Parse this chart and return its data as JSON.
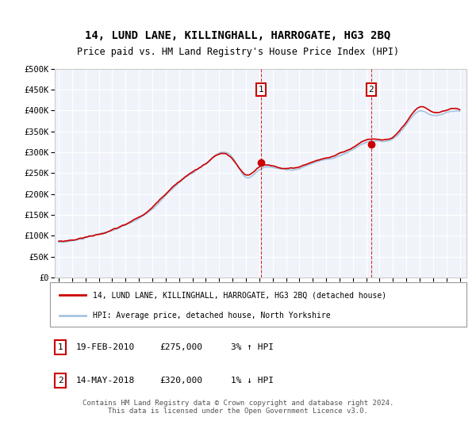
{
  "title": "14, LUND LANE, KILLINGHALL, HARROGATE, HG3 2BQ",
  "subtitle": "Price paid vs. HM Land Registry's House Price Index (HPI)",
  "ylabel_ticks": [
    "£0",
    "£50K",
    "£100K",
    "£150K",
    "£200K",
    "£250K",
    "£300K",
    "£350K",
    "£400K",
    "£450K",
    "£500K"
  ],
  "ytick_vals": [
    0,
    50000,
    100000,
    150000,
    200000,
    250000,
    300000,
    350000,
    400000,
    450000,
    500000
  ],
  "ylim": [
    0,
    500000
  ],
  "xlim_start": 1994.7,
  "xlim_end": 2025.5,
  "hpi_color": "#a8c4e0",
  "price_color": "#cc0000",
  "fill_color": "#dce9f5",
  "bg_color": "#f0f4fa",
  "grid_color": "#ffffff",
  "sale1_x": 2010.12,
  "sale1_y": 275000,
  "sale2_x": 2018.37,
  "sale2_y": 320000,
  "vline1_x": 2010.12,
  "vline2_x": 2018.37,
  "legend_label_price": "14, LUND LANE, KILLINGHALL, HARROGATE, HG3 2BQ (detached house)",
  "legend_label_hpi": "HPI: Average price, detached house, North Yorkshire",
  "note1_label": "1",
  "note1_date": "19-FEB-2010",
  "note1_price": "£275,000",
  "note1_hpi": "3% ↑ HPI",
  "note2_label": "2",
  "note2_date": "14-MAY-2018",
  "note2_price": "£320,000",
  "note2_hpi": "1% ↓ HPI",
  "footer": "Contains HM Land Registry data © Crown copyright and database right 2024.\nThis data is licensed under the Open Government Licence v3.0."
}
